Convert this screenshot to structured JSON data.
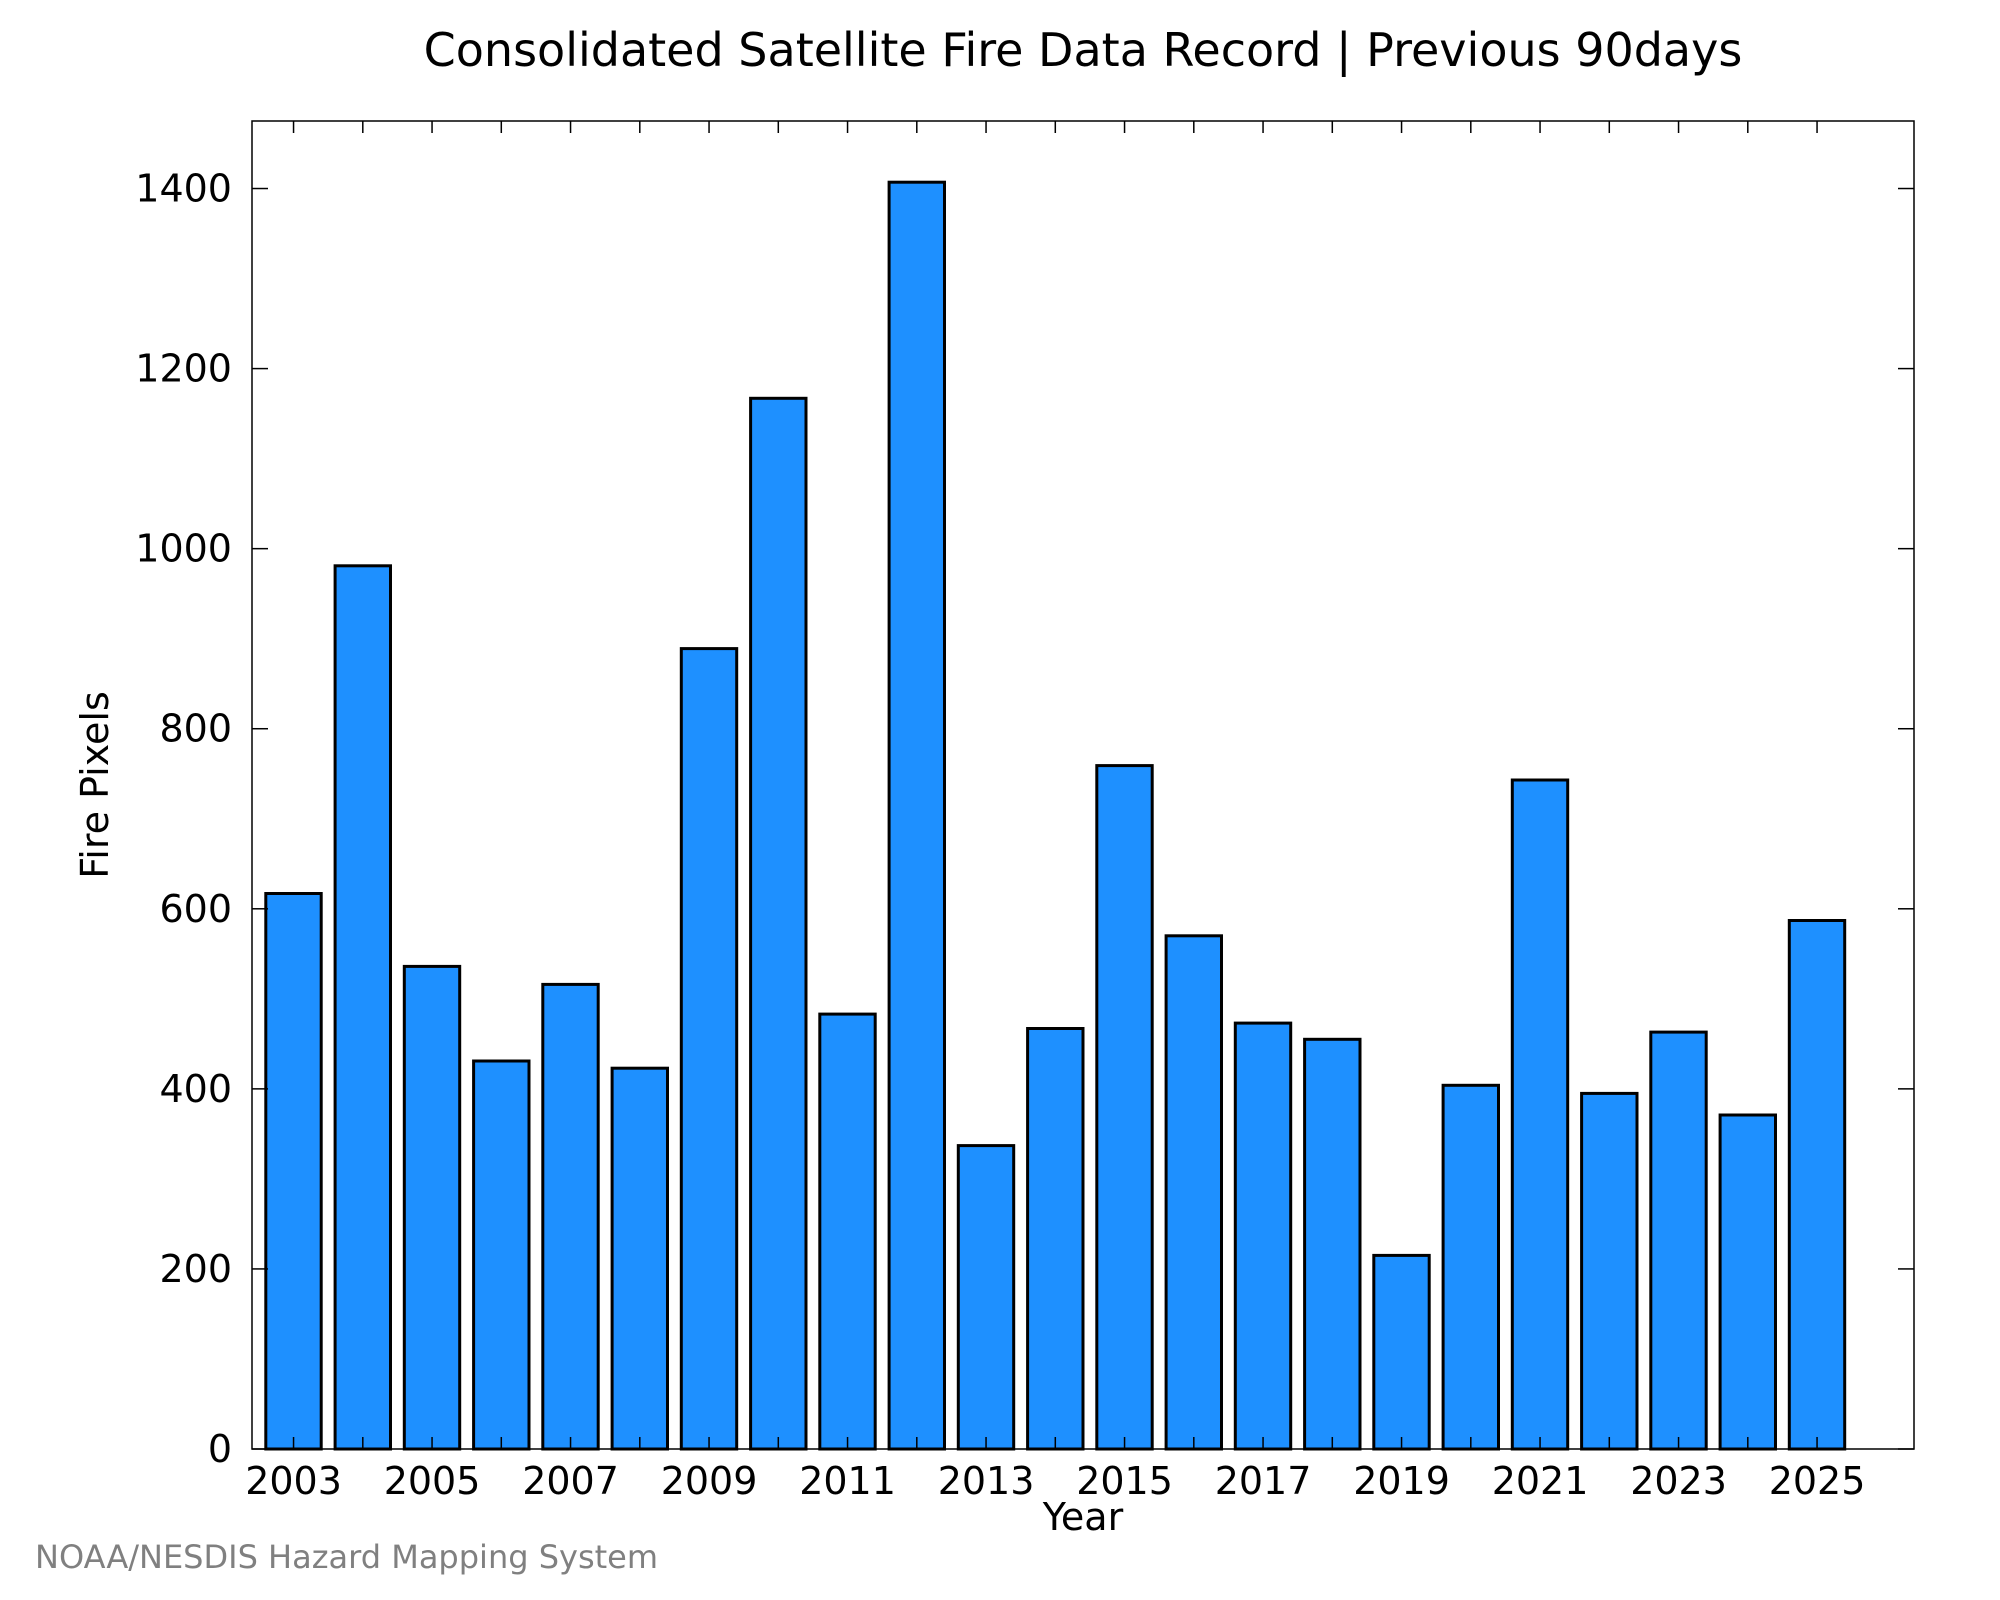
{
  "chart_data": {
    "type": "bar",
    "title": "Consolidated Satellite Fire Data Record | Previous 90days",
    "xlabel": "Year",
    "ylabel": "Fire Pixels",
    "categories": [
      2003,
      2004,
      2005,
      2006,
      2007,
      2008,
      2009,
      2010,
      2011,
      2012,
      2013,
      2014,
      2015,
      2016,
      2017,
      2018,
      2019,
      2020,
      2021,
      2022,
      2023,
      2024,
      2025
    ],
    "values": [
      617,
      981,
      536,
      431,
      516,
      423,
      889,
      1167,
      483,
      1407,
      337,
      467,
      759,
      570,
      473,
      455,
      215,
      404,
      743,
      395,
      463,
      371,
      587
    ],
    "x_tick_labels": [
      "2003",
      "2005",
      "2007",
      "2009",
      "2011",
      "2013",
      "2015",
      "2017",
      "2019",
      "2021",
      "2023",
      "2025"
    ],
    "y_tick_labels": [
      "0",
      "200",
      "400",
      "600",
      "800",
      "1000",
      "1200",
      "1400"
    ],
    "y_ticks": [
      0,
      200,
      400,
      600,
      800,
      1000,
      1200,
      1400
    ],
    "ylim": [
      0,
      1475
    ],
    "xlim": [
      2002.4,
      2026.4
    ],
    "grid": false,
    "bar_color": "#1e90ff",
    "edge_color": "#000000"
  },
  "credit": "NOAA/NESDIS Hazard Mapping System"
}
